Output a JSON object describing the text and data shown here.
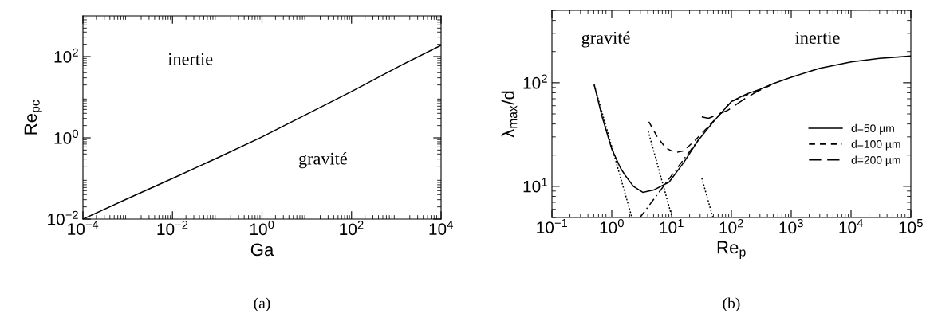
{
  "chart_data": [
    {
      "type": "line",
      "xlabel": "Ga",
      "ylabel": "Re$_{pc}$",
      "log": "xy",
      "xlim": [
        0.0001,
        10000
      ],
      "ylim": [
        0.01,
        1000
      ],
      "xticks": [
        {
          "value": 0.0001,
          "label": "10$^{−4}$"
        },
        {
          "value": 0.01,
          "label": "10$^{−2}$"
        },
        {
          "value": 1,
          "label": "10$^{0}$"
        },
        {
          "value": 100,
          "label": "10$^{2}$"
        },
        {
          "value": 10000,
          "label": "10$^{4}$"
        }
      ],
      "yticks": [
        {
          "value": 0.01,
          "label": "10$^{−2}$"
        },
        {
          "value": 1,
          "label": "10$^{0}$"
        },
        {
          "value": 100,
          "label": "10$^{2}$"
        }
      ],
      "grid": false,
      "legend": false,
      "series": [
        {
          "color": "#000000",
          "line_style": "solid",
          "x": [
            0.0001,
            0.001,
            0.01,
            0.1,
            1,
            10,
            100,
            1000,
            10000
          ],
          "values": [
            0.01,
            0.032,
            0.1,
            0.32,
            1.05,
            3.8,
            13.8,
            53,
            190
          ]
        }
      ],
      "annotations": [
        "inertie",
        "gravité",
        "(a)"
      ]
    },
    {
      "type": "line",
      "xlabel": "Re$_{p}$",
      "ylabel": "λ$_{max}$/d",
      "log": "xy",
      "xlim": [
        0.1,
        100000
      ],
      "ylim": [
        5,
        500
      ],
      "xticks": [
        {
          "value": 0.1,
          "label": "10$^{−1}$"
        },
        {
          "value": 1,
          "label": "10$^{0}$"
        },
        {
          "value": 10,
          "label": "10$^{1}$"
        },
        {
          "value": 100,
          "label": "10$^{2}$"
        },
        {
          "value": 1000,
          "label": "10$^{3}$"
        },
        {
          "value": 10000,
          "label": "10$^{4}$"
        },
        {
          "value": 100000,
          "label": "10$^{5}$"
        }
      ],
      "yticks": [
        {
          "value": 10,
          "label": "10$^{1}$"
        },
        {
          "value": 100,
          "label": "10$^{2}$"
        }
      ],
      "grid": false,
      "legend": "bottom right",
      "series": [
        {
          "name": "d=50 µm",
          "color": "#000000",
          "line_style": "solid",
          "x": [
            0.51,
            0.69,
            1.0,
            1.4,
            1.7,
            2.3,
            3.3,
            5,
            9.1,
            16,
            28,
            50,
            100,
            180,
            295,
            500,
            1000,
            3000,
            10000,
            30000,
            100000
          ],
          "values": [
            95,
            47,
            22.9,
            15,
            12.6,
            10,
            8.75,
            9.2,
            11,
            17,
            27.9,
            42,
            65.8,
            78,
            86,
            98,
            113,
            138,
            159,
            172,
            181
          ]
        },
        {
          "name": "d=100 µm",
          "color": "#000000",
          "line_style": "dashed",
          "x": [
            4.17,
            5.8,
            8,
            11.4,
            16,
            25,
            40,
            100,
            295
          ],
          "values": [
            42,
            29.8,
            23.5,
            21.1,
            22,
            28,
            37,
            65.8,
            86
          ]
        },
        {
          "name": "d=200 µm",
          "color": "#000000",
          "line_style": "longdash",
          "x": [
            32,
            41.5,
            86,
            170,
            265,
            460
          ],
          "values": [
            46.7,
            45.3,
            54,
            70.4,
            82,
            95
          ]
        },
        {
          "color": "#000000",
          "line_style": "dashdot",
          "x": [
            2.97,
            28
          ],
          "values": [
            5,
            28
          ]
        },
        {
          "color": "#000000",
          "line_style": "dotted",
          "x": [
            0.51,
            2.17
          ],
          "values": [
            95,
            5
          ]
        },
        {
          "color": "#000000",
          "line_style": "dotted",
          "x": [
            4.07,
            10.2
          ],
          "values": [
            34,
            5
          ]
        },
        {
          "color": "#000000",
          "line_style": "dotted",
          "x": [
            32,
            49
          ],
          "values": [
            12,
            5
          ]
        }
      ],
      "annotations": [
        "gravité",
        "inertie",
        "(b)"
      ]
    }
  ]
}
